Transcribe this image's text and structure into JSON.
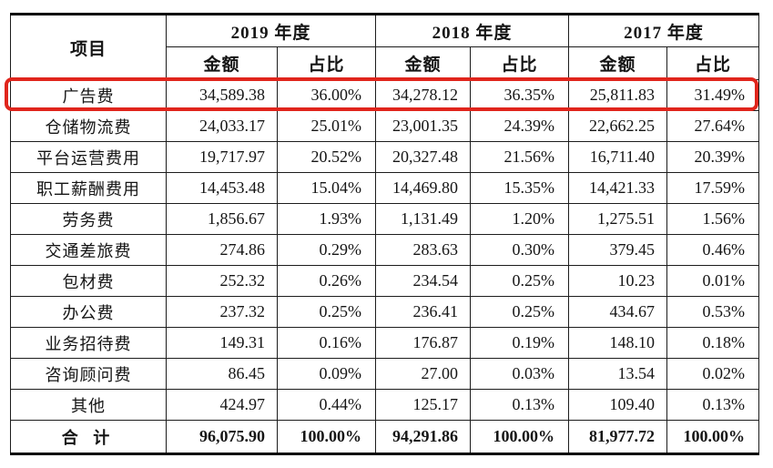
{
  "table": {
    "item_header": "项目",
    "year_groups": [
      {
        "label": "2019 年度"
      },
      {
        "label": "2018 年度"
      },
      {
        "label": "2017 年度"
      }
    ],
    "sub_headers": {
      "amount": "金额",
      "ratio": "占比"
    },
    "rows": [
      {
        "item": "广告费",
        "highlighted": true,
        "values": [
          "34,589.38",
          "36.00%",
          "34,278.12",
          "36.35%",
          "25,811.83",
          "31.49%"
        ]
      },
      {
        "item": "仓储物流费",
        "highlighted": false,
        "values": [
          "24,033.17",
          "25.01%",
          "23,001.35",
          "24.39%",
          "22,662.25",
          "27.64%"
        ]
      },
      {
        "item": "平台运营费用",
        "highlighted": false,
        "values": [
          "19,717.97",
          "20.52%",
          "20,327.48",
          "21.56%",
          "16,711.40",
          "20.39%"
        ]
      },
      {
        "item": "职工薪酬费用",
        "highlighted": false,
        "values": [
          "14,453.48",
          "15.04%",
          "14,469.80",
          "15.35%",
          "14,421.33",
          "17.59%"
        ]
      },
      {
        "item": "劳务费",
        "highlighted": false,
        "values": [
          "1,856.67",
          "1.93%",
          "1,131.49",
          "1.20%",
          "1,275.51",
          "1.56%"
        ]
      },
      {
        "item": "交通差旅费",
        "highlighted": false,
        "values": [
          "274.86",
          "0.29%",
          "283.63",
          "0.30%",
          "379.45",
          "0.46%"
        ]
      },
      {
        "item": "包材费",
        "highlighted": false,
        "values": [
          "252.32",
          "0.26%",
          "234.54",
          "0.25%",
          "10.23",
          "0.01%"
        ]
      },
      {
        "item": "办公费",
        "highlighted": false,
        "values": [
          "237.32",
          "0.25%",
          "236.41",
          "0.25%",
          "434.67",
          "0.53%"
        ]
      },
      {
        "item": "业务招待费",
        "highlighted": false,
        "values": [
          "149.31",
          "0.16%",
          "176.87",
          "0.19%",
          "148.10",
          "0.18%"
        ]
      },
      {
        "item": "咨询顾问费",
        "highlighted": false,
        "values": [
          "86.45",
          "0.09%",
          "27.00",
          "0.03%",
          "13.54",
          "0.02%"
        ]
      },
      {
        "item": "其他",
        "highlighted": false,
        "values": [
          "424.97",
          "0.44%",
          "125.17",
          "0.13%",
          "109.40",
          "0.13%"
        ]
      }
    ],
    "total_row": {
      "item": "合 计",
      "values": [
        "96,075.90",
        "100.00%",
        "94,291.86",
        "100.00%",
        "81,977.72",
        "100.00%"
      ]
    }
  },
  "highlight_color": "#e0251c"
}
